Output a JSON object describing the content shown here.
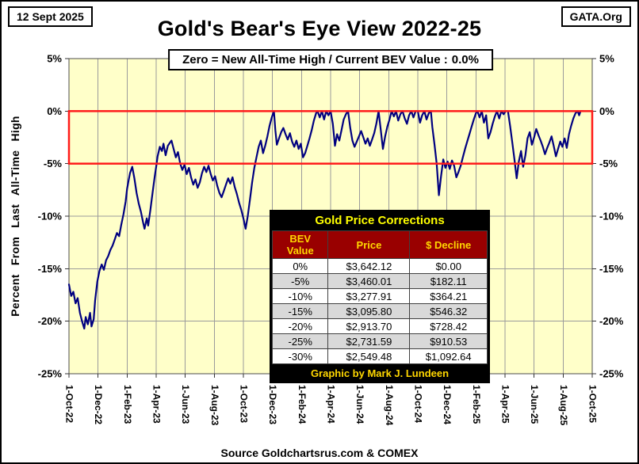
{
  "header": {
    "date": "12 Sept 2025",
    "title": "Gold's Bear's Eye View 2022-25",
    "org": "GATA.Org"
  },
  "subtitle": {
    "prefix": "Zero = New All-Time High / Current BEV Value :",
    "current_value": "0.0%"
  },
  "footer": {
    "source": "Source Goldchartsrus.com & COMEX"
  },
  "table": {
    "title": "Gold Price Corrections",
    "columns": [
      "BEV Value",
      "Price",
      "$ Decline"
    ],
    "rows": [
      [
        "0%",
        "$3,642.12",
        "$0.00"
      ],
      [
        "-5%",
        "$3,460.01",
        "$182.11"
      ],
      [
        "-10%",
        "$3,277.91",
        "$364.21"
      ],
      [
        "-15%",
        "$3,095.80",
        "$546.32"
      ],
      [
        "-20%",
        "$2,913.70",
        "$728.42"
      ],
      [
        "-25%",
        "$2,731.59",
        "$910.53"
      ],
      [
        "-30%",
        "$2,549.48",
        "$1,092.64"
      ]
    ],
    "credit": "Graphic by Mark J. Lundeen",
    "colors": {
      "title_text": "#FFFF00",
      "header_bg": "#990000",
      "header_text": "#FFD700",
      "alt_row_bg": "#D9D9D9",
      "frame_bg": "#000000"
    }
  },
  "chart_data": {
    "type": "line",
    "title": "Gold's Bear's Eye View 2022-25",
    "subtitle": "Zero = New All-Time High / Current BEV Value : 0.0%",
    "xlabel": "",
    "ylabel": "Percent From Last All-Time High",
    "x_unit": "months since 1-Oct-2022",
    "xlim": [
      0,
      36
    ],
    "ylim": [
      -25,
      5
    ],
    "grid": true,
    "legend": "none",
    "y_tick_values": [
      5,
      0,
      -5,
      -10,
      -15,
      -20,
      -25
    ],
    "y_tick_labels": [
      "5%",
      "0%",
      "-5%",
      "-10%",
      "-15%",
      "-20%",
      "-25%"
    ],
    "x_tick_labels": [
      "1-Oct-22",
      "1-Dec-22",
      "1-Feb-23",
      "1-Apr-23",
      "1-Jun-23",
      "1-Aug-23",
      "1-Oct-23",
      "1-Dec-23",
      "1-Feb-24",
      "1-Apr-24",
      "1-Jun-24",
      "1-Aug-24",
      "1-Oct-24",
      "1-Dec-24",
      "1-Feb-25",
      "1-Apr-25",
      "1-Jun-25",
      "1-Aug-25",
      "1-Oct-25"
    ],
    "highlight_band": {
      "from": 0,
      "to": -5,
      "color": "#FF1A1A",
      "meaning": "0% to -5% BEV zone outlined in red"
    },
    "colors": {
      "plot_bg": "#FFFFC9",
      "grid": "#9B9B9B",
      "axis": "#4D4D4D",
      "line": "#000080"
    },
    "series": [
      {
        "name": "Gold BEV (% below last all-time high)",
        "color": "#000080",
        "points": [
          [
            0.0,
            -16.5
          ],
          [
            0.15,
            -17.6
          ],
          [
            0.3,
            -17.2
          ],
          [
            0.45,
            -18.3
          ],
          [
            0.6,
            -17.8
          ],
          [
            0.75,
            -19.2
          ],
          [
            0.9,
            -20.0
          ],
          [
            1.05,
            -20.7
          ],
          [
            1.15,
            -19.6
          ],
          [
            1.3,
            -20.3
          ],
          [
            1.45,
            -19.2
          ],
          [
            1.55,
            -20.5
          ],
          [
            1.7,
            -19.8
          ],
          [
            1.8,
            -18.0
          ],
          [
            1.95,
            -16.2
          ],
          [
            2.1,
            -15.2
          ],
          [
            2.25,
            -14.6
          ],
          [
            2.4,
            -15.1
          ],
          [
            2.55,
            -14.2
          ],
          [
            2.7,
            -13.8
          ],
          [
            2.85,
            -13.2
          ],
          [
            3.0,
            -12.8
          ],
          [
            3.15,
            -12.2
          ],
          [
            3.3,
            -11.6
          ],
          [
            3.45,
            -11.9
          ],
          [
            3.6,
            -10.8
          ],
          [
            3.75,
            -9.8
          ],
          [
            3.9,
            -8.6
          ],
          [
            4.0,
            -7.4
          ],
          [
            4.1,
            -6.6
          ],
          [
            4.2,
            -5.9
          ],
          [
            4.35,
            -5.3
          ],
          [
            4.5,
            -6.4
          ],
          [
            4.65,
            -7.8
          ],
          [
            4.8,
            -8.8
          ],
          [
            4.95,
            -9.6
          ],
          [
            5.1,
            -10.6
          ],
          [
            5.2,
            -11.2
          ],
          [
            5.35,
            -10.2
          ],
          [
            5.45,
            -10.9
          ],
          [
            5.6,
            -9.4
          ],
          [
            5.75,
            -7.8
          ],
          [
            5.9,
            -6.2
          ],
          [
            6.0,
            -5.3
          ],
          [
            6.1,
            -4.3
          ],
          [
            6.25,
            -3.4
          ],
          [
            6.4,
            -3.8
          ],
          [
            6.5,
            -3.1
          ],
          [
            6.65,
            -4.2
          ],
          [
            6.8,
            -3.3
          ],
          [
            6.95,
            -3.0
          ],
          [
            7.05,
            -2.8
          ],
          [
            7.2,
            -3.6
          ],
          [
            7.35,
            -4.4
          ],
          [
            7.5,
            -3.9
          ],
          [
            7.65,
            -5.0
          ],
          [
            7.8,
            -5.6
          ],
          [
            7.95,
            -5.1
          ],
          [
            8.1,
            -6.0
          ],
          [
            8.25,
            -5.4
          ],
          [
            8.4,
            -6.3
          ],
          [
            8.55,
            -7.0
          ],
          [
            8.7,
            -6.5
          ],
          [
            8.85,
            -7.3
          ],
          [
            9.0,
            -6.8
          ],
          [
            9.15,
            -5.9
          ],
          [
            9.3,
            -5.3
          ],
          [
            9.45,
            -5.8
          ],
          [
            9.6,
            -5.2
          ],
          [
            9.75,
            -6.0
          ],
          [
            9.9,
            -6.6
          ],
          [
            10.05,
            -6.2
          ],
          [
            10.2,
            -7.1
          ],
          [
            10.35,
            -7.8
          ],
          [
            10.5,
            -8.2
          ],
          [
            10.65,
            -7.6
          ],
          [
            10.8,
            -7.0
          ],
          [
            10.95,
            -6.4
          ],
          [
            11.1,
            -6.9
          ],
          [
            11.25,
            -6.3
          ],
          [
            11.4,
            -7.2
          ],
          [
            11.55,
            -7.9
          ],
          [
            11.7,
            -8.7
          ],
          [
            11.85,
            -9.4
          ],
          [
            12.0,
            -10.2
          ],
          [
            12.15,
            -11.2
          ],
          [
            12.3,
            -10.0
          ],
          [
            12.45,
            -8.4
          ],
          [
            12.6,
            -6.8
          ],
          [
            12.75,
            -5.4
          ],
          [
            12.9,
            -4.4
          ],
          [
            13.05,
            -3.4
          ],
          [
            13.2,
            -2.8
          ],
          [
            13.35,
            -4.0
          ],
          [
            13.5,
            -3.3
          ],
          [
            13.65,
            -2.4
          ],
          [
            13.8,
            -1.4
          ],
          [
            13.95,
            -0.6
          ],
          [
            14.1,
            0.0
          ],
          [
            14.2,
            -1.8
          ],
          [
            14.3,
            -3.2
          ],
          [
            14.45,
            -2.6
          ],
          [
            14.6,
            -2.0
          ],
          [
            14.75,
            -1.6
          ],
          [
            14.9,
            -2.2
          ],
          [
            15.05,
            -2.7
          ],
          [
            15.2,
            -2.1
          ],
          [
            15.35,
            -2.9
          ],
          [
            15.5,
            -3.4
          ],
          [
            15.65,
            -2.8
          ],
          [
            15.8,
            -3.6
          ],
          [
            15.95,
            -3.1
          ],
          [
            16.1,
            -4.4
          ],
          [
            16.25,
            -4.0
          ],
          [
            16.4,
            -3.3
          ],
          [
            16.55,
            -2.6
          ],
          [
            16.7,
            -1.8
          ],
          [
            16.85,
            -0.9
          ],
          [
            17.0,
            -0.2
          ],
          [
            17.1,
            0.0
          ],
          [
            17.25,
            -0.6
          ],
          [
            17.4,
            0.0
          ],
          [
            17.55,
            -0.8
          ],
          [
            17.7,
            0.0
          ],
          [
            17.85,
            -0.4
          ],
          [
            18.0,
            0.0
          ],
          [
            18.15,
            -1.2
          ],
          [
            18.3,
            -3.3
          ],
          [
            18.45,
            -2.2
          ],
          [
            18.6,
            -2.8
          ],
          [
            18.75,
            -1.8
          ],
          [
            18.9,
            -0.8
          ],
          [
            19.05,
            -0.3
          ],
          [
            19.2,
            0.0
          ],
          [
            19.35,
            -1.6
          ],
          [
            19.5,
            -2.8
          ],
          [
            19.65,
            -3.4
          ],
          [
            19.8,
            -2.9
          ],
          [
            19.95,
            -2.4
          ],
          [
            20.1,
            -1.9
          ],
          [
            20.25,
            -2.5
          ],
          [
            20.4,
            -3.1
          ],
          [
            20.55,
            -2.6
          ],
          [
            20.7,
            -3.3
          ],
          [
            20.85,
            -2.7
          ],
          [
            21.0,
            -2.1
          ],
          [
            21.15,
            -1.2
          ],
          [
            21.3,
            0.0
          ],
          [
            21.45,
            -1.8
          ],
          [
            21.6,
            -3.6
          ],
          [
            21.75,
            -2.4
          ],
          [
            21.9,
            -1.5
          ],
          [
            22.05,
            -0.8
          ],
          [
            22.2,
            0.0
          ],
          [
            22.35,
            -0.5
          ],
          [
            22.5,
            0.0
          ],
          [
            22.65,
            -0.9
          ],
          [
            22.8,
            -0.3
          ],
          [
            22.95,
            0.0
          ],
          [
            23.1,
            -0.7
          ],
          [
            23.25,
            -1.2
          ],
          [
            23.4,
            -0.4
          ],
          [
            23.55,
            0.0
          ],
          [
            23.7,
            -0.6
          ],
          [
            23.85,
            0.0
          ],
          [
            24.0,
            0.0
          ],
          [
            24.15,
            -1.1
          ],
          [
            24.3,
            -0.4
          ],
          [
            24.45,
            0.0
          ],
          [
            24.6,
            -0.8
          ],
          [
            24.75,
            -0.2
          ],
          [
            24.9,
            0.0
          ],
          [
            25.0,
            -1.5
          ],
          [
            25.15,
            -3.2
          ],
          [
            25.3,
            -5.0
          ],
          [
            25.45,
            -8.0
          ],
          [
            25.6,
            -6.2
          ],
          [
            25.75,
            -4.6
          ],
          [
            25.9,
            -5.4
          ],
          [
            26.05,
            -4.8
          ],
          [
            26.2,
            -5.5
          ],
          [
            26.35,
            -4.7
          ],
          [
            26.5,
            -5.2
          ],
          [
            26.65,
            -6.3
          ],
          [
            26.8,
            -5.8
          ],
          [
            26.95,
            -5.2
          ],
          [
            27.1,
            -4.4
          ],
          [
            27.25,
            -3.6
          ],
          [
            27.4,
            -2.9
          ],
          [
            27.55,
            -2.2
          ],
          [
            27.7,
            -1.5
          ],
          [
            27.85,
            -0.8
          ],
          [
            28.0,
            -0.2
          ],
          [
            28.1,
            0.0
          ],
          [
            28.25,
            -0.6
          ],
          [
            28.4,
            0.0
          ],
          [
            28.55,
            -1.1
          ],
          [
            28.7,
            -0.4
          ],
          [
            28.85,
            -2.6
          ],
          [
            29.0,
            -2.0
          ],
          [
            29.15,
            -1.2
          ],
          [
            29.3,
            -0.5
          ],
          [
            29.45,
            0.0
          ],
          [
            29.6,
            -0.7
          ],
          [
            29.75,
            0.0
          ],
          [
            29.9,
            -0.3
          ],
          [
            30.05,
            0.0
          ],
          [
            30.2,
            0.0
          ],
          [
            30.35,
            -1.4
          ],
          [
            30.5,
            -3.0
          ],
          [
            30.65,
            -4.6
          ],
          [
            30.8,
            -6.4
          ],
          [
            30.95,
            -4.8
          ],
          [
            31.1,
            -3.8
          ],
          [
            31.25,
            -5.3
          ],
          [
            31.4,
            -4.2
          ],
          [
            31.55,
            -2.6
          ],
          [
            31.7,
            -2.0
          ],
          [
            31.85,
            -3.2
          ],
          [
            32.0,
            -2.5
          ],
          [
            32.15,
            -1.7
          ],
          [
            32.3,
            -2.3
          ],
          [
            32.45,
            -2.8
          ],
          [
            32.6,
            -3.4
          ],
          [
            32.75,
            -4.1
          ],
          [
            32.9,
            -3.5
          ],
          [
            33.05,
            -3.0
          ],
          [
            33.2,
            -2.4
          ],
          [
            33.35,
            -3.3
          ],
          [
            33.5,
            -4.3
          ],
          [
            33.65,
            -3.6
          ],
          [
            33.8,
            -2.9
          ],
          [
            33.95,
            -3.4
          ],
          [
            34.1,
            -2.6
          ],
          [
            34.25,
            -3.5
          ],
          [
            34.4,
            -2.2
          ],
          [
            34.55,
            -1.4
          ],
          [
            34.7,
            -0.7
          ],
          [
            34.85,
            -0.2
          ],
          [
            35.0,
            0.0
          ],
          [
            35.1,
            -0.4
          ],
          [
            35.2,
            0.0
          ],
          [
            35.3,
            0.0
          ],
          [
            35.37,
            0.0
          ]
        ]
      }
    ]
  }
}
